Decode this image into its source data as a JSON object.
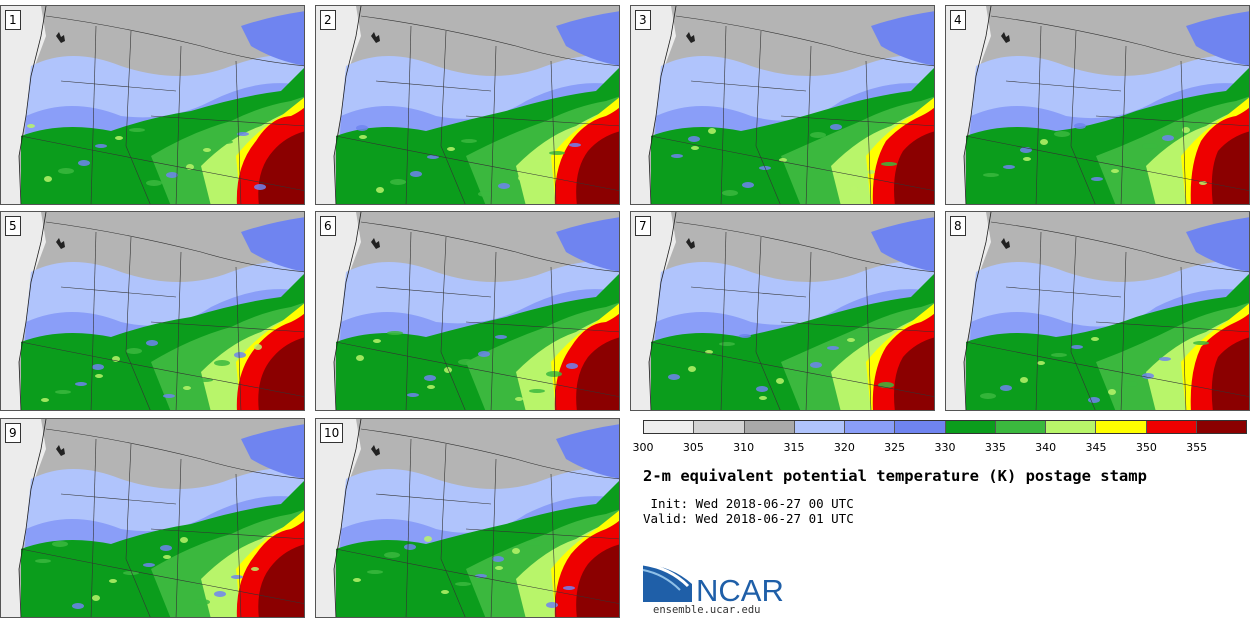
{
  "panels": [
    {
      "label": "1"
    },
    {
      "label": "2"
    },
    {
      "label": "3"
    },
    {
      "label": "4"
    },
    {
      "label": "5"
    },
    {
      "label": "6"
    },
    {
      "label": "7"
    },
    {
      "label": "8"
    },
    {
      "label": "9"
    },
    {
      "label": "10"
    }
  ],
  "colorbar": {
    "colors": [
      "#eeeeee",
      "#d3d3d3",
      "#a9a9a9",
      "#b0c4fc",
      "#8a9ef8",
      "#6f84f0",
      "#0b9d1c",
      "#3bb83e",
      "#b8f56a",
      "#ffff00",
      "#ee0000",
      "#8b0000"
    ],
    "ticks": [
      "300",
      "305",
      "310",
      "315",
      "320",
      "325",
      "330",
      "335",
      "340",
      "345",
      "350",
      "355"
    ]
  },
  "title": "2-m equivalent potential temperature (K) postage stamp",
  "init": " Init: Wed 2018-06-27 00 UTC",
  "valid": "Valid: Wed 2018-06-27 01 UTC",
  "logo": {
    "name": "NCAR",
    "url": "ensemble.ucar.edu"
  }
}
